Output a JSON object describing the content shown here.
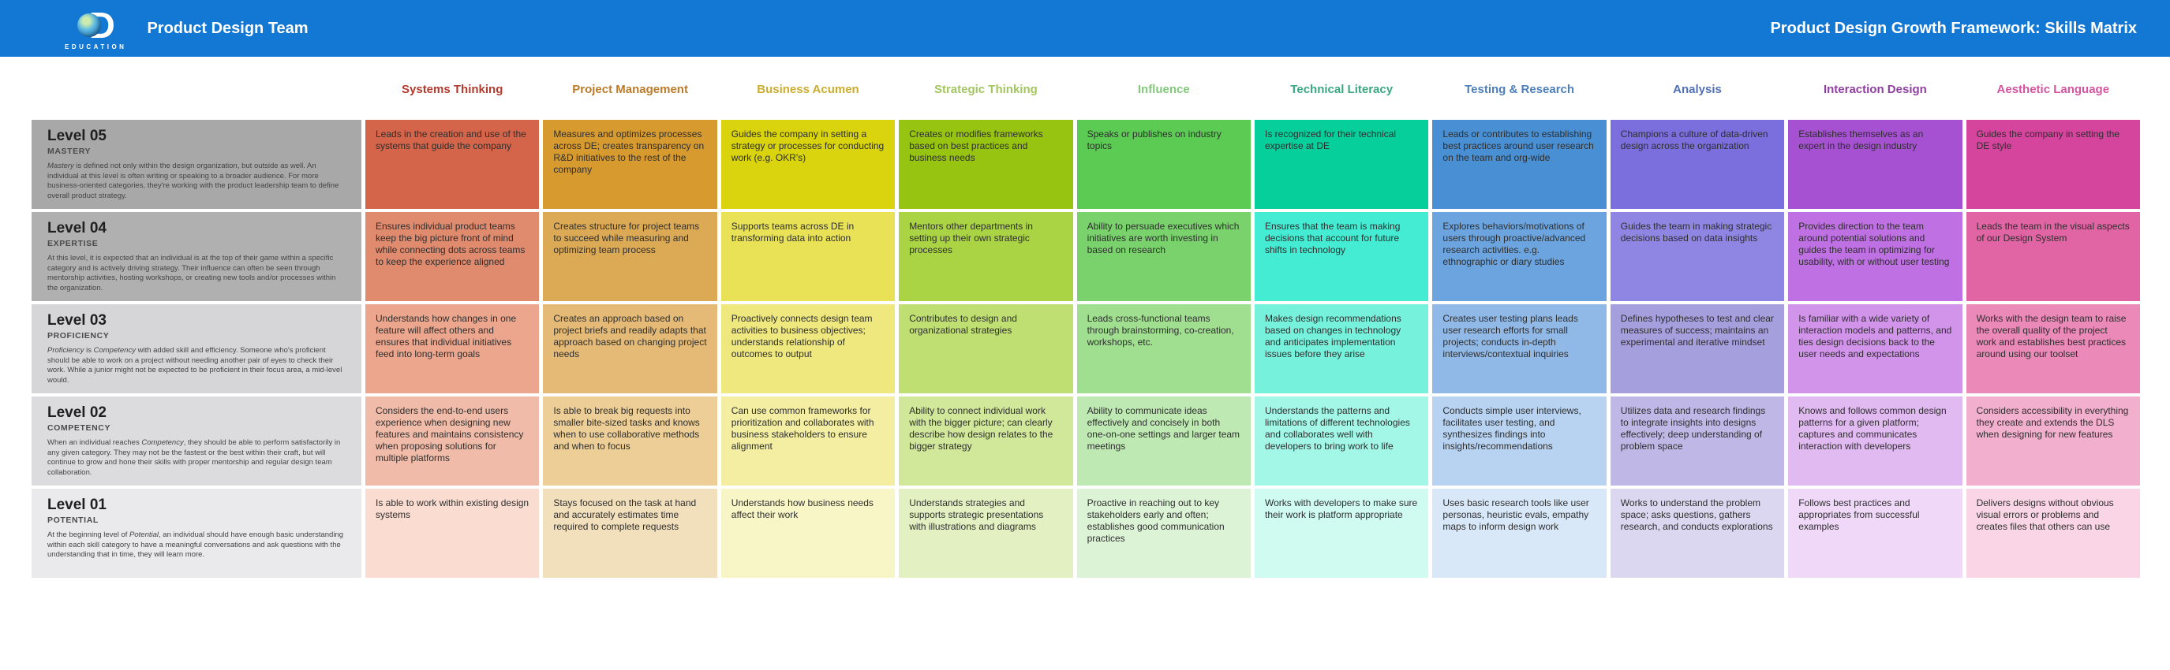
{
  "header": {
    "bg_color": "#1377d4",
    "logo": {
      "wordmark": "EDUCATION",
      "d_letter": "D"
    },
    "team_name": "Product Design Team",
    "title": "Product Design Growth Framework: Skills Matrix"
  },
  "matrix": {
    "columns": [
      {
        "label": "Systems Thinking",
        "label_color": "#b23a2e",
        "cell_colors": [
          "#d4654a",
          "#e08a6e",
          "#eba68d",
          "#f0bca9",
          "#fadcd0"
        ],
        "cells": [
          "Leads in the creation and use of the systems that guide the company",
          "Ensures individual product teams keep the big picture front of mind while connecting dots across teams to keep the experience aligned",
          "Understands how changes in one feature will affect others and ensures that individual initiatives feed into long-term goals",
          "Considers the end-to-end users experience when designing new features and maintains consistency when proposing solutions for multiple platforms",
          "Is able to work within existing design systems"
        ]
      },
      {
        "label": "Project Management",
        "label_color": "#bb7b29",
        "cell_colors": [
          "#d69a2f",
          "#dcaa55",
          "#e4ba76",
          "#ecce96",
          "#f2dfbc"
        ],
        "cells": [
          "Measures and optimizes processes across DE; creates transparency on R&D initiatives to the rest of the company",
          "Creates structure for project teams to succeed while measuring and optimizing team process",
          "Creates an approach based on project briefs and readily adapts that approach based on changing project needs",
          "Is able to break big requests into smaller bite-sized tasks and knows when to use collaborative methods and when to focus",
          "Stays focused on the task at hand and accurately estimates time required to complete requests"
        ]
      },
      {
        "label": "Business Acumen",
        "label_color": "#ccad2f",
        "cell_colors": [
          "#d9d40e",
          "#e9e257",
          "#efe87e",
          "#f3eea1",
          "#f8f5c6"
        ],
        "cells": [
          "Guides the company in setting a strategy or processes for conducting work (e.g. OKR's)",
          "Supports teams across DE in transforming data into action",
          "Proactively connects design team activities to business objectives; understands relationship of outcomes to output",
          "Can use common frameworks for prioritization and collaborates with business stakeholders to ensure alignment",
          "Understands how business needs affect their work"
        ]
      },
      {
        "label": "Strategic Thinking",
        "label_color": "#a3c65f",
        "cell_colors": [
          "#97c411",
          "#aad443",
          "#bfdf72",
          "#d1e89b",
          "#e3f1c2"
        ],
        "cells": [
          "Creates or modifies frameworks based on best practices and business needs",
          "Mentors other departments in setting up their own strategic processes",
          "Contributes to design and organizational strategies",
          "Ability to connect individual work with the bigger picture; can clearly describe how design relates to the bigger strategy",
          "Understands strategies and supports strategic presentations with illustrations and diagrams"
        ]
      },
      {
        "label": "Influence",
        "label_color": "#84c87c",
        "cell_colors": [
          "#5bcb53",
          "#79d26c",
          "#a0df90",
          "#bfe9b3",
          "#dcf3d6"
        ],
        "cells": [
          "Speaks or publishes on industry topics",
          "Ability to persuade executives which initiatives are worth investing in based on research",
          "Leads cross-functional teams through brainstorming, co-creation, workshops, etc.",
          "Ability to communicate ideas effectively and concisely in both one-on-one settings and larger team meetings",
          "Proactive in reaching out to key stakeholders early and often; establishes good communication practices"
        ]
      },
      {
        "label": "Technical Literacy",
        "label_color": "#39a881",
        "cell_colors": [
          "#06cf9c",
          "#43ecd2",
          "#76f1dc",
          "#a3f7e7",
          "#cffbf1"
        ],
        "cells": [
          "Is recognized for their technical expertise at DE",
          "Ensures that the team is making decisions that account for future shifts in technology",
          "Makes design recommendations based on changes in technology and anticipates implementation issues before they arise",
          "Understands the patterns and limitations of different technologies and collaborates well with developers to bring work to life",
          "Works with developers to make sure their work is platform appropriate"
        ]
      },
      {
        "label": "Testing & Research",
        "label_color": "#4d7fb8",
        "cell_colors": [
          "#498fd3",
          "#6ba4df",
          "#90b9e8",
          "#b7d3f1",
          "#d8e8f9"
        ],
        "cells": [
          "Leads or contributes to establishing best practices around user research on the team and org-wide",
          "Explores behaviors/motivations of users through proactive/advanced research activities. e.g. ethnographic or diary studies",
          "Creates user testing plans leads user research efforts for small projects; conducts in-depth interviews/contextual inquiries",
          "Conducts simple user interviews, facilitates user testing, and synthesizes findings into insights/recommendations",
          "Uses basic research tools like user personas, heuristic evals, empathy maps to inform design work"
        ]
      },
      {
        "label": "Analysis",
        "label_color": "#5071b5",
        "cell_colors": [
          "#7b6fde",
          "#8f86e3",
          "#a69fdd",
          "#bfb8e6",
          "#dbd7f0"
        ],
        "cells": [
          "Champions a culture of data-driven design across the organization",
          "Guides the team in making strategic decisions based on data insights",
          "Defines hypotheses to test and clear measures of success; maintains an experimental and iterative mindset",
          "Utilizes data and research findings to integrate insights into designs effectively; deep understanding of problem space",
          "Works to understand the problem space; asks questions, gathers research, and conducts explorations"
        ]
      },
      {
        "label": "Interaction Design",
        "label_color": "#8f3f9f",
        "cell_colors": [
          "#a651d2",
          "#bf70e2",
          "#d194ea",
          "#e2baf2",
          "#f0d8f8"
        ],
        "cells": [
          "Establishes themselves as an expert in the design industry",
          "Provides direction to the team around potential solutions and guides the team in optimizing for usability, with or without user testing",
          "Is familiar with a wide variety of interaction models and patterns, and ties design decisions back to the user needs and expectations",
          "Knows and follows common design patterns for a given platform; captures and communicates interaction with developers",
          "Follows best practices and appropriates from successful examples"
        ]
      },
      {
        "label": "Aesthetic Language",
        "label_color": "#d3549f",
        "cell_colors": [
          "#d5449d",
          "#e164a4",
          "#eb89b8",
          "#f3b0ce",
          "#f9d5e5"
        ],
        "cells": [
          "Guides the company in setting the DE style",
          "Leads the team in the visual aspects of our Design System",
          "Works with the design team to raise the overall quality of the project work and establishes best practices around using our toolset",
          "Considers accessibility in everything they create and extends the DLS when designing for new features",
          "Delivers designs without obvious visual errors or problems and creates files that others can use"
        ]
      }
    ],
    "levels": [
      {
        "number": "Level 05",
        "name": "MASTERY",
        "bg_color": "#a8a8a9",
        "description_segments": [
          {
            "text": "Mastery",
            "italic": true
          },
          {
            "text": " is defined not only within the design organization, but outside as well. An individual at this level is often writing or speaking to a broader audience. For more business-oriented categories, they're working with the product leadership team to define overall product strategy.",
            "italic": false
          }
        ]
      },
      {
        "number": "Level 04",
        "name": "EXPERTISE",
        "bg_color": "#b0b0b1",
        "description_segments": [
          {
            "text": "At this level, it is expected that an individual is at the top of their game within a specific category and is actively driving strategy. Their influence can often be seen through mentorship activities, hosting workshops, or creating new tools and/or processes within the organization.",
            "italic": false
          }
        ]
      },
      {
        "number": "Level 03",
        "name": "PROFICIENCY",
        "bg_color": "#d6d6d9",
        "description_segments": [
          {
            "text": "Proficiency",
            "italic": true
          },
          {
            "text": " is ",
            "italic": false
          },
          {
            "text": "Competency",
            "italic": true
          },
          {
            "text": " with added skill and efficiency. Someone who's proficient should be able to work on a project without needing another pair of eyes to check their work. While a junior might not be expected to be proficient in their focus area, a mid-level would.",
            "italic": false
          }
        ]
      },
      {
        "number": "Level 02",
        "name": "COMPETENCY",
        "bg_color": "#dcdcdf",
        "description_segments": [
          {
            "text": "When an individual reaches ",
            "italic": false
          },
          {
            "text": "Competency",
            "italic": true
          },
          {
            "text": ", they should be able to perform satisfactorily in any given category. They may not be the fastest or the best within their craft, but will continue to grow and hone their skills with proper mentorship and regular design team collaboration.",
            "italic": false
          }
        ]
      },
      {
        "number": "Level 01",
        "name": "POTENTIAL",
        "bg_color": "#eaeaed",
        "description_segments": [
          {
            "text": "At the beginning level of ",
            "italic": false
          },
          {
            "text": "Potential",
            "italic": true
          },
          {
            "text": ", an individual should have enough basic understanding within each skill category to have a meaningful conversations and ask questions with the understanding that in time, they will learn more.",
            "italic": false
          }
        ]
      }
    ]
  }
}
